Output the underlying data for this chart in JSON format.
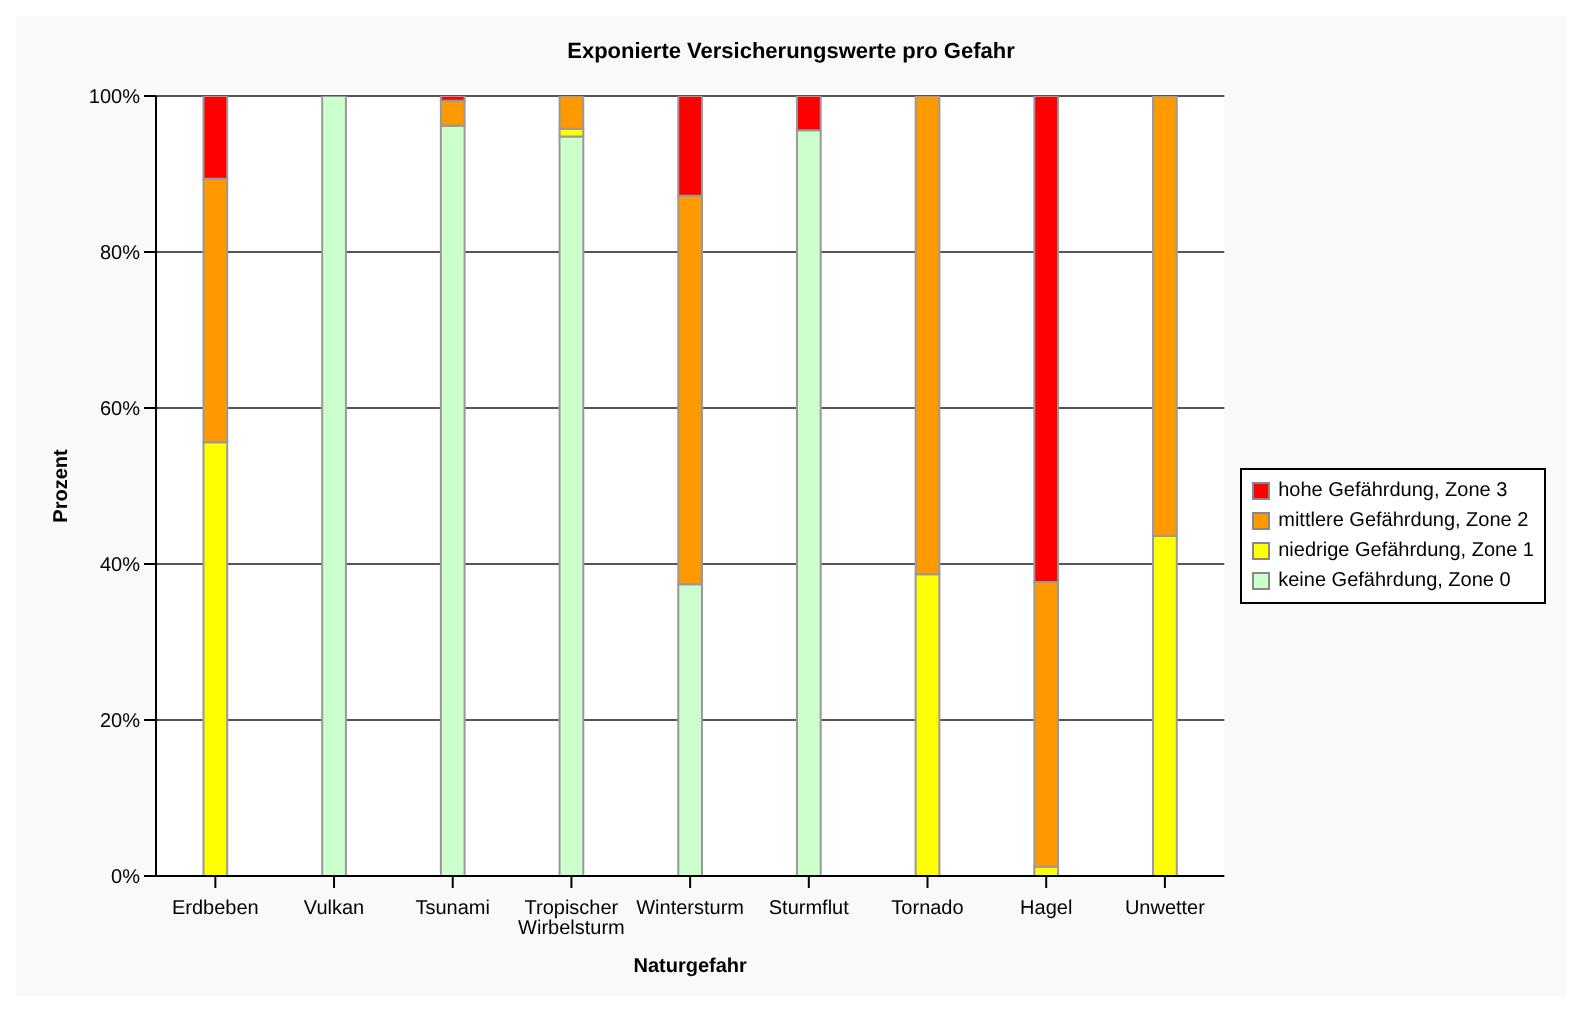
{
  "chart_data": {
    "type": "bar",
    "stacked": true,
    "title": "Exponierte Versicherungswerte pro Gefahr",
    "xlabel": "Naturgefahr",
    "ylabel": "Prozent",
    "categories": [
      "Erdbeben",
      "Vulkan",
      "Tsunami",
      "Tropischer Wirbelsturm",
      "Wintersturm",
      "Sturmflut",
      "Tornado",
      "Hagel",
      "Unwetter"
    ],
    "series": [
      {
        "name": "keine Gefährdung, Zone 0",
        "color": "#ccffcc",
        "values": [
          null,
          100,
          96.2,
          94.8,
          37.4,
          95.6,
          null,
          null,
          null
        ]
      },
      {
        "name": "niedrige Gefährdung, Zone 1",
        "color": "#ffff00",
        "values": [
          55.6,
          null,
          null,
          1,
          null,
          null,
          38.7,
          1.2,
          43.6
        ]
      },
      {
        "name": "mittlere Gefährdung, Zone 2",
        "color": "#ff9900",
        "values": [
          33.8,
          null,
          3.2,
          4.2,
          49.8,
          null,
          61.3,
          36.5,
          56.4
        ]
      },
      {
        "name": "hohe Gefährdung, Zone 3",
        "color": "#ff0000",
        "values": [
          10.6,
          null,
          0.6,
          null,
          12.8,
          4.4,
          null,
          62.3,
          null
        ]
      }
    ],
    "ylim": [
      0,
      100
    ],
    "yticks": [
      {
        "value": 0,
        "label": "0%"
      },
      {
        "value": 20,
        "label": "20%"
      },
      {
        "value": 40,
        "label": "40%"
      },
      {
        "value": 60,
        "label": "60%"
      },
      {
        "value": 80,
        "label": "80%"
      },
      {
        "value": 100,
        "label": "100%"
      }
    ],
    "grid": "y",
    "legend": "right"
  }
}
